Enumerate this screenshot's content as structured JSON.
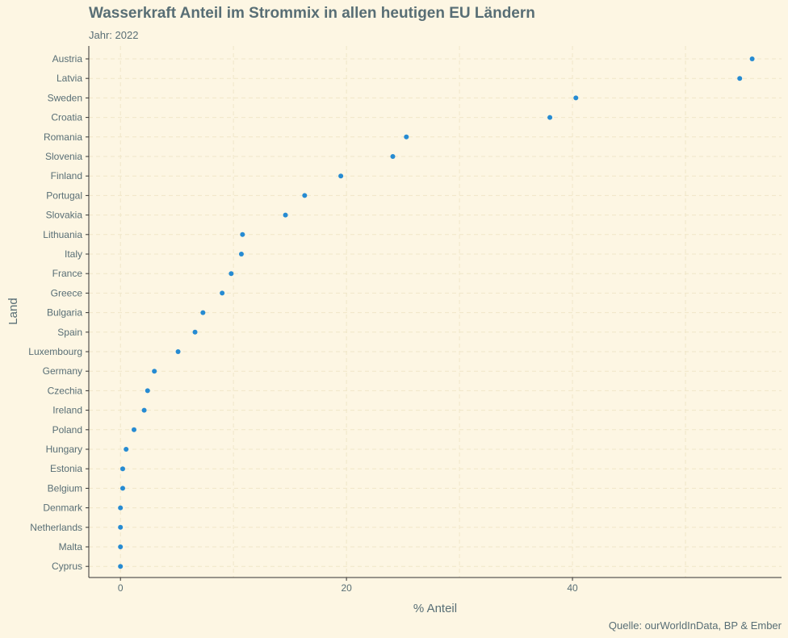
{
  "chart_data": {
    "type": "scatter",
    "title": "Wasserkraft Anteil im Strommix in allen heutigen EU Ländern",
    "subtitle": "Jahr: 2022",
    "caption": "Quelle: ourWorldInData, BP & Ember",
    "xlabel": "% Anteil",
    "ylabel": "Land",
    "xlim": [
      -2.8,
      58.5
    ],
    "xticks": [
      0,
      20,
      40
    ],
    "grid": true,
    "point_color": "#268bd2",
    "categories": [
      "Austria",
      "Latvia",
      "Sweden",
      "Croatia",
      "Romania",
      "Slovenia",
      "Finland",
      "Portugal",
      "Slovakia",
      "Lithuania",
      "Italy",
      "France",
      "Greece",
      "Bulgaria",
      "Spain",
      "Luxembourg",
      "Germany",
      "Czechia",
      "Ireland",
      "Poland",
      "Hungary",
      "Estonia",
      "Belgium",
      "Denmark",
      "Netherlands",
      "Malta",
      "Cyprus"
    ],
    "values": [
      55.9,
      54.8,
      40.3,
      38.0,
      25.3,
      24.1,
      19.5,
      16.3,
      14.6,
      10.8,
      10.7,
      9.8,
      9.0,
      7.3,
      6.6,
      5.1,
      3.0,
      2.4,
      2.1,
      1.2,
      0.5,
      0.2,
      0.2,
      0.0,
      0.0,
      0.0,
      0.0
    ]
  }
}
